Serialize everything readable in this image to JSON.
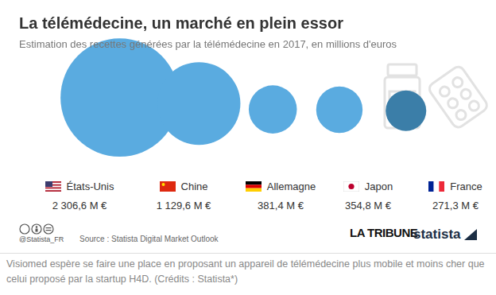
{
  "chart_data": {
    "type": "bubble",
    "title": "La télémédecine, un marché en plein essor",
    "subtitle": "Estimation des recettes générées par la télémédecine en 2017, en millions d'euros",
    "categories": [
      "États-Unis",
      "Chine",
      "Allemagne",
      "Japon",
      "France"
    ],
    "values": [
      2306.6,
      1129.6,
      381.4,
      354.8,
      271.3
    ],
    "value_labels": [
      "2 306,6 M €",
      "1 129,6 M €",
      "381,4 M €",
      "354,8 M €",
      "271,3 M €"
    ],
    "colors": [
      "#5aabe0",
      "#5aabe0",
      "#5aabe0",
      "#5aabe0",
      "#3b7ea8"
    ],
    "data_labels": true,
    "grid": false,
    "tick_labels": false,
    "handle": "@Statista_FR",
    "source": "Source : Statista Digital Market Outlook",
    "logos": [
      "LA TRIBUNE",
      "statista"
    ],
    "caption": "Visiomed espère se faire une place en proposant un appareil de télémédecine plus mobile et moins cher que celui proposé par la startup H4D. (Crédits : Statista*)"
  }
}
